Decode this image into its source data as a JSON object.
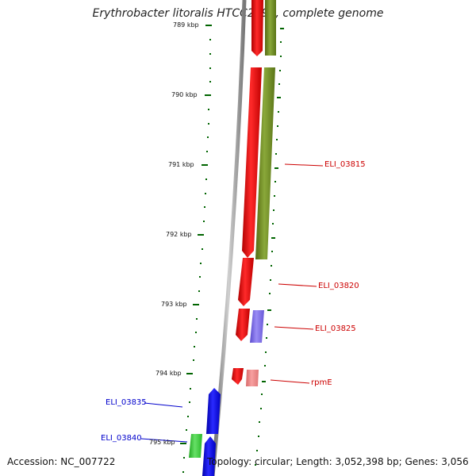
{
  "title": "Erythrobacter litoralis HTCC2594, complete genome",
  "accession": "Accession: NC_007722",
  "summary": "Topology: circular; Length: 3,052,398 bp; Genes: 3,056",
  "colors": {
    "forward_gene": "#ff0000",
    "reverse_gene": "#0000ff",
    "green_gene": "#6b8e23",
    "purple_gene": "#7b68ee",
    "bright_green_gene": "#33cc33",
    "pink_gene": "#f08080",
    "tick": "#006400",
    "backbone": "#888888"
  },
  "ticks": [
    {
      "label": "789 kbp"
    },
    {
      "label": "790 kbp"
    },
    {
      "label": "791 kbp"
    },
    {
      "label": "792 kbp"
    },
    {
      "label": "793 kbp"
    },
    {
      "label": "794 kbp"
    },
    {
      "label": "795 kbp"
    }
  ],
  "gene_labels": {
    "eli_03815": "ELI_03815",
    "eli_03820": "ELI_03820",
    "eli_03825": "ELI_03825",
    "rpme": "rpmE",
    "eli_03835": "ELI_03835",
    "eli_03840": "ELI_03840"
  }
}
